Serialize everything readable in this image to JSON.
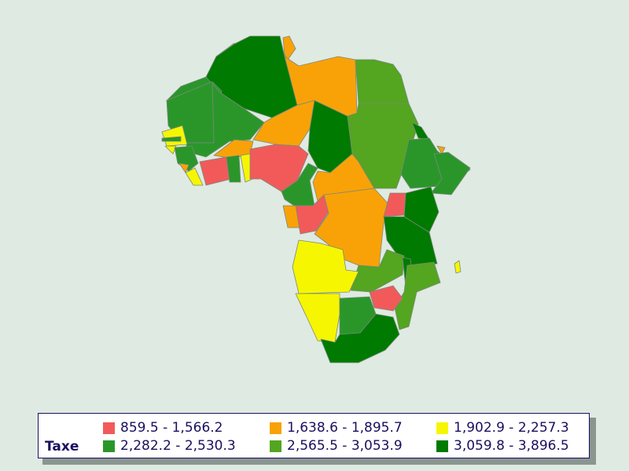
{
  "legend": {
    "title": "Taxe",
    "classes": [
      {
        "label": "859.5 - 1,566.2",
        "color": "#f25a5a"
      },
      {
        "label": "1,638.6 - 1,895.7",
        "color": "#f9a207"
      },
      {
        "label": "1,902.9 - 2,257.3",
        "color": "#f6f600"
      },
      {
        "label": "2,282.2 - 2,530.3",
        "color": "#2a962a"
      },
      {
        "label": "2,565.5 - 3,053.9",
        "color": "#54a51f"
      },
      {
        "label": "3,059.8 - 3,896.5",
        "color": "#007a00"
      }
    ]
  }
}
